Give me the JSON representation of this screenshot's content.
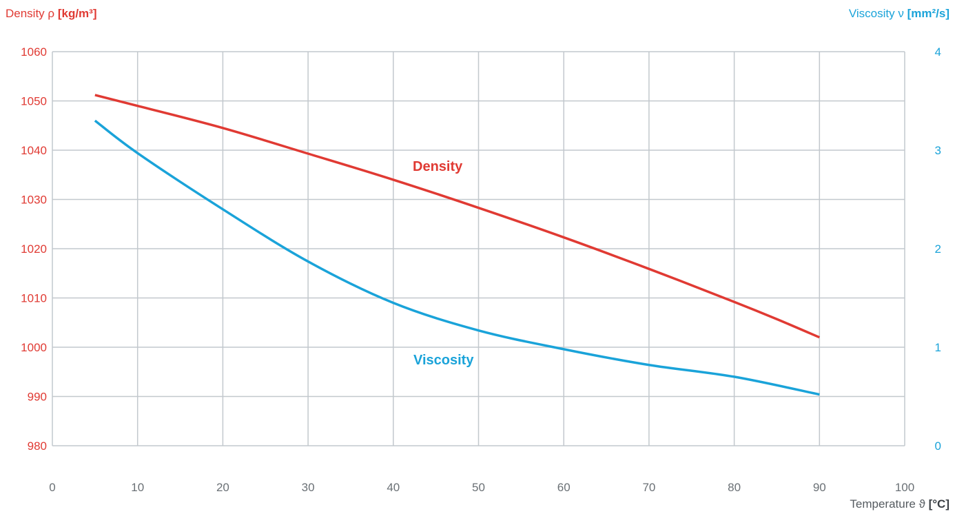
{
  "colors": {
    "density": "#e03a33",
    "viscosity": "#1aa3d9",
    "grid": "#c2c8cd",
    "x_axis_text": "#6a7075"
  },
  "left_axis": {
    "label": "Density",
    "symbol": "ρ",
    "unit": "[kg/m³]"
  },
  "right_axis": {
    "label": "Viscosity",
    "symbol": "ν",
    "unit": "[mm²/s]"
  },
  "x_axis": {
    "label": "Temperature",
    "symbol": "ϑ",
    "unit": "[°C]"
  },
  "chart_data": {
    "type": "line",
    "grid": true,
    "x_ticks": [
      "0",
      "10",
      "20",
      "30",
      "40",
      "50",
      "60",
      "70",
      "80",
      "90",
      "100"
    ],
    "y_left_ticks": [
      "980",
      "990",
      "1000",
      "1010",
      "1020",
      "1030",
      "1040",
      "1050",
      "1060"
    ],
    "y_right_ticks": [
      "0",
      "1",
      "2",
      "3",
      "4"
    ],
    "xlim": [
      0,
      100
    ],
    "ylim_left": [
      980,
      1060
    ],
    "ylim_right": [
      0,
      4
    ],
    "series": [
      {
        "name": "Density",
        "axis": "left",
        "x": [
          5,
          10,
          20,
          30,
          40,
          50,
          60,
          70,
          80,
          85,
          90
        ],
        "y": [
          1051.2,
          1049.0,
          1044.5,
          1039.3,
          1034.0,
          1028.3,
          1022.3,
          1015.9,
          1009.2,
          1005.7,
          1002.0
        ]
      },
      {
        "name": "Viscosity",
        "axis": "right",
        "x": [
          5,
          10,
          20,
          30,
          40,
          50,
          60,
          70,
          80,
          90
        ],
        "y": [
          3.3,
          2.97,
          2.4,
          1.87,
          1.45,
          1.17,
          0.98,
          0.82,
          0.7,
          0.52
        ]
      }
    ],
    "annotations": [
      {
        "text": "Density",
        "series": "Density"
      },
      {
        "text": "Viscosity",
        "series": "Viscosity"
      }
    ]
  }
}
